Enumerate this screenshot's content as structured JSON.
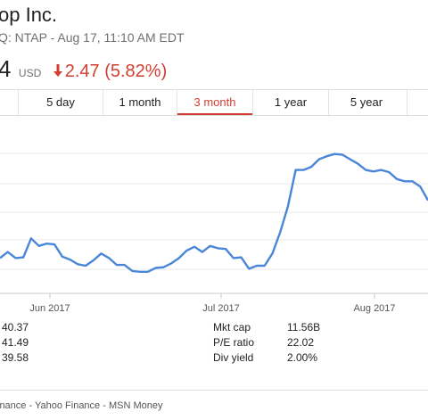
{
  "header": {
    "title": "op Inc.",
    "subtitle": "Q: NTAP - Aug 17, 11:10 AM EDT",
    "price": "4",
    "currency": "USD",
    "change": "2.47 (5.82%)",
    "change_icon": "down-arrow-icon",
    "down_color": "#d23f31"
  },
  "tabs": [
    {
      "label": "",
      "active": false
    },
    {
      "label": "5 day",
      "active": false
    },
    {
      "label": "1 month",
      "active": false
    },
    {
      "label": "3 month",
      "active": true
    },
    {
      "label": "1 year",
      "active": false
    },
    {
      "label": "5 year",
      "active": false
    }
  ],
  "chart_data": {
    "type": "line",
    "line_color": "#4a86d8",
    "grid": true,
    "x_ticks": [
      "Jun 2017",
      "Jul 2017",
      "Aug 2017"
    ],
    "series": [
      {
        "values": [
          39.8,
          40.2,
          39.8,
          39.85,
          41.1,
          40.6,
          40.75,
          40.7,
          39.9,
          39.7,
          39.4,
          39.3,
          39.65,
          40.1,
          39.8,
          39.35,
          39.35,
          38.95,
          38.9,
          38.9,
          39.15,
          39.2,
          39.45,
          39.8,
          40.3,
          40.55,
          40.2,
          40.6,
          40.45,
          40.4,
          39.8,
          39.85,
          39.1,
          39.3,
          39.3,
          40.1,
          41.5,
          43.2,
          45.6,
          45.6,
          45.8,
          46.3,
          46.5,
          46.65,
          46.6,
          46.3,
          46.0,
          45.6,
          45.5,
          45.6,
          45.45,
          45.0,
          44.85,
          44.85,
          44.5,
          43.6
        ]
      }
    ]
  },
  "stats": {
    "left": [
      {
        "value": "40.37"
      },
      {
        "value": "41.49"
      },
      {
        "value": "39.58"
      }
    ],
    "right": [
      {
        "label": "Mkt cap",
        "value": "11.56B"
      },
      {
        "label": "P/E ratio",
        "value": "22.02"
      },
      {
        "label": "Div yield",
        "value": "2.00%"
      }
    ]
  },
  "footer": {
    "text": "inance - Yahoo Finance - MSN Money"
  }
}
